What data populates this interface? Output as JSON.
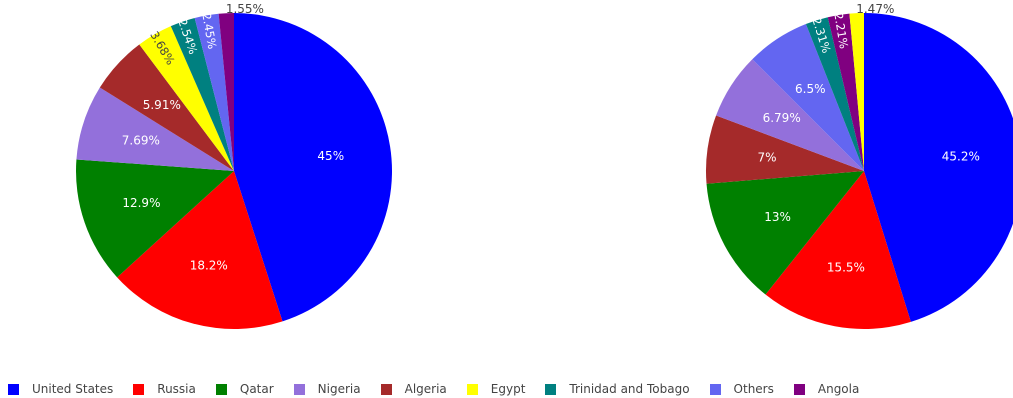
{
  "colors": {
    "United States": "#0000ff",
    "Russia": "#ff0000",
    "Qatar": "#008000",
    "Nigeria": "#9370db",
    "Algeria": "#a52a2a",
    "Egypt": "#ffff00",
    "Trinidad and Tobago": "#008080",
    "Others": "#6366f1",
    "Angola": "#800080"
  },
  "legend": {
    "items": [
      "United States",
      "Russia",
      "Qatar",
      "Nigeria",
      "Algeria",
      "Egypt",
      "Trinidad and Tobago",
      "Others",
      "Angola"
    ]
  },
  "chart_data": [
    {
      "type": "pie",
      "sort": "descending",
      "direction": "clockwise",
      "start": "12 o'clock",
      "slices": [
        {
          "label": "United States",
          "value": 45,
          "text": "45%"
        },
        {
          "label": "Russia",
          "value": 18.2,
          "text": "18.2%"
        },
        {
          "label": "Qatar",
          "value": 12.9,
          "text": "12.9%"
        },
        {
          "label": "Nigeria",
          "value": 7.69,
          "text": "7.69%"
        },
        {
          "label": "Algeria",
          "value": 5.91,
          "text": "5.91%"
        },
        {
          "label": "Egypt",
          "value": 3.68,
          "text": "3.68%"
        },
        {
          "label": "Trinidad and Tobago",
          "value": 2.54,
          "text": "2.54%"
        },
        {
          "label": "Others",
          "value": 2.45,
          "text": "2.45%"
        },
        {
          "label": "Angola",
          "value": 1.55,
          "text": "1.55%"
        }
      ]
    },
    {
      "type": "pie",
      "sort": "descending",
      "direction": "clockwise",
      "start": "12 o'clock",
      "slices": [
        {
          "label": "United States",
          "value": 45.2,
          "text": "45.2%"
        },
        {
          "label": "Russia",
          "value": 15.5,
          "text": "15.5%"
        },
        {
          "label": "Qatar",
          "value": 13,
          "text": "13%"
        },
        {
          "label": "Algeria",
          "value": 7,
          "text": "7%"
        },
        {
          "label": "Nigeria",
          "value": 6.79,
          "text": "6.79%"
        },
        {
          "label": "Others",
          "value": 6.5,
          "text": "6.5%"
        },
        {
          "label": "Trinidad and Tobago",
          "value": 2.31,
          "text": "2.31%"
        },
        {
          "label": "Angola",
          "value": 2.21,
          "text": "2.21%"
        },
        {
          "label": "Egypt",
          "value": 1.47,
          "text": "1.47%"
        }
      ]
    }
  ]
}
